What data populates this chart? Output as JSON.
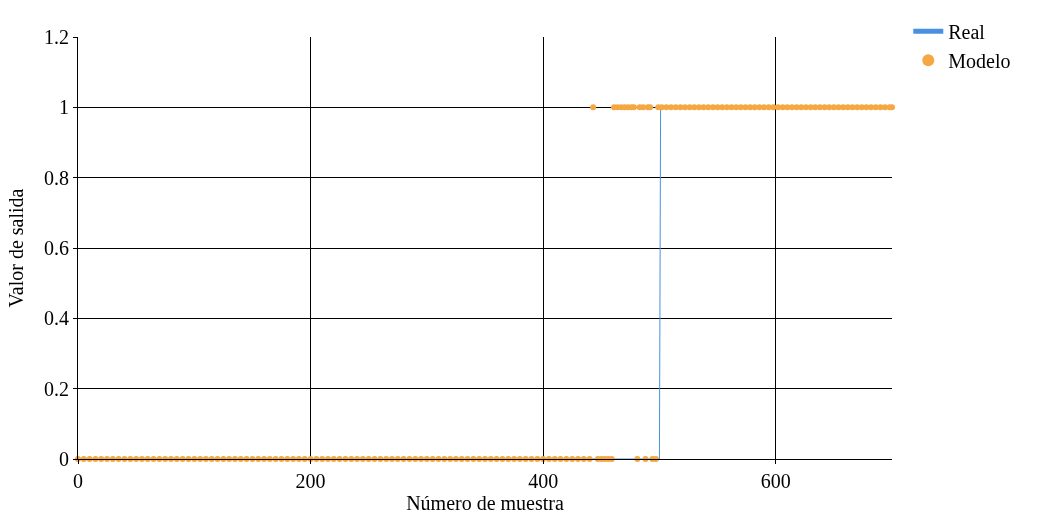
{
  "chart_data": {
    "type": "line",
    "xlabel": "Número de muestra",
    "ylabel": "Valor de salida",
    "xlim": [
      0,
      700
    ],
    "xticks": [
      0,
      200,
      400,
      600
    ],
    "ylim": [
      0,
      1.2
    ],
    "yticks": [
      0,
      0.2,
      0.4,
      0.6,
      0.8,
      1,
      1.2
    ],
    "grid": true,
    "legend": "top right",
    "series": [
      {
        "name": "Real",
        "color": "#4a90e2",
        "marker": "none",
        "x": [
          0,
          500,
          501,
          700
        ],
        "values": [
          0,
          0,
          1,
          1
        ]
      },
      {
        "name": "Modelo",
        "type": "scatter",
        "color": "#f5a742",
        "marker": "circle",
        "x": [
          0,
          5,
          10,
          15,
          20,
          25,
          30,
          35,
          40,
          45,
          50,
          55,
          60,
          65,
          70,
          75,
          80,
          85,
          90,
          95,
          100,
          105,
          110,
          115,
          120,
          125,
          130,
          135,
          140,
          145,
          150,
          155,
          160,
          165,
          170,
          175,
          180,
          185,
          190,
          195,
          200,
          205,
          210,
          215,
          220,
          225,
          230,
          235,
          240,
          245,
          250,
          255,
          260,
          265,
          270,
          275,
          280,
          285,
          290,
          295,
          300,
          305,
          310,
          315,
          320,
          325,
          330,
          335,
          340,
          345,
          350,
          355,
          360,
          365,
          370,
          375,
          380,
          385,
          390,
          395,
          400,
          405,
          410,
          415,
          420,
          425,
          430,
          435,
          440,
          443,
          447,
          450,
          453,
          456,
          459,
          461,
          464,
          467,
          470,
          473,
          476,
          478,
          481,
          483,
          486,
          488,
          490,
          492,
          494,
          497,
          499,
          502,
          506,
          510,
          514,
          518,
          522,
          526,
          530,
          534,
          538,
          542,
          546,
          550,
          554,
          558,
          562,
          566,
          570,
          574,
          578,
          582,
          586,
          590,
          594,
          598,
          602,
          606,
          610,
          614,
          618,
          622,
          626,
          630,
          634,
          638,
          642,
          646,
          650,
          654,
          658,
          662,
          666,
          670,
          674,
          678,
          682,
          686,
          690,
          694,
          698,
          700
        ],
        "values": [
          0,
          0,
          0,
          0,
          0,
          0,
          0,
          0,
          0,
          0,
          0,
          0,
          0,
          0,
          0,
          0,
          0,
          0,
          0,
          0,
          0,
          0,
          0,
          0,
          0,
          0,
          0,
          0,
          0,
          0,
          0,
          0,
          0,
          0,
          0,
          0,
          0,
          0,
          0,
          0,
          0,
          0,
          0,
          0,
          0,
          0,
          0,
          0,
          0,
          0,
          0,
          0,
          0,
          0,
          0,
          0,
          0,
          0,
          0,
          0,
          0,
          0,
          0,
          0,
          0,
          0,
          0,
          0,
          0,
          0,
          0,
          0,
          0,
          0,
          0,
          0,
          0,
          0,
          0,
          0,
          0,
          0,
          0,
          0,
          0,
          0,
          0,
          0,
          0,
          1,
          0,
          0,
          0,
          0,
          0,
          1,
          1,
          1,
          1,
          1,
          1,
          1,
          0,
          1,
          1,
          0,
          1,
          1,
          0,
          0,
          1,
          1,
          1,
          1,
          1,
          1,
          1,
          1,
          1,
          1,
          1,
          1,
          1,
          1,
          1,
          1,
          1,
          1,
          1,
          1,
          1,
          1,
          1,
          1,
          1,
          1,
          1,
          1,
          1,
          1,
          1,
          1,
          1,
          1,
          1,
          1,
          1,
          1,
          1,
          1,
          1,
          1,
          1,
          1,
          1,
          1,
          1,
          1,
          1,
          1,
          1,
          1
        ]
      }
    ]
  }
}
